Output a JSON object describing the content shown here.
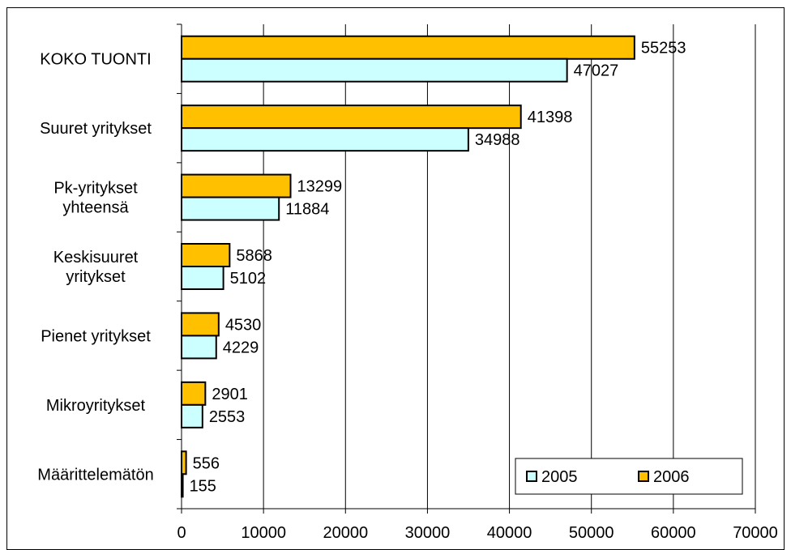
{
  "chart_data": {
    "type": "bar",
    "orientation": "horizontal",
    "categories": [
      [
        "KOKO TUONTI"
      ],
      [
        "Suuret yritykset"
      ],
      [
        "Pk-yritykset",
        "yhteensä"
      ],
      [
        "Keskisuuret",
        "yritykset"
      ],
      [
        "Pienet yritykset"
      ],
      [
        "Mikroyritykset"
      ],
      [
        "Määrittelemätön"
      ]
    ],
    "series": [
      {
        "name": "2006",
        "color": "#FFC000",
        "values": [
          55253,
          41398,
          13299,
          5868,
          4530,
          2901,
          556
        ]
      },
      {
        "name": "2005",
        "color": "#CCFFFF",
        "values": [
          47027,
          34988,
          11884,
          5102,
          4229,
          2553,
          155
        ]
      }
    ],
    "xlim": [
      0,
      70000
    ],
    "xticks": [
      "0",
      "10000",
      "20000",
      "30000",
      "40000",
      "50000",
      "60000",
      "70000"
    ],
    "xtick_values": [
      0,
      10000,
      20000,
      30000,
      40000,
      50000,
      60000,
      70000
    ],
    "grid": "vertical",
    "legend_position": "bottom-right",
    "legend": [
      {
        "name": "2005",
        "color": "#CCFFFF"
      },
      {
        "name": "2006",
        "color": "#FFC000"
      }
    ]
  }
}
